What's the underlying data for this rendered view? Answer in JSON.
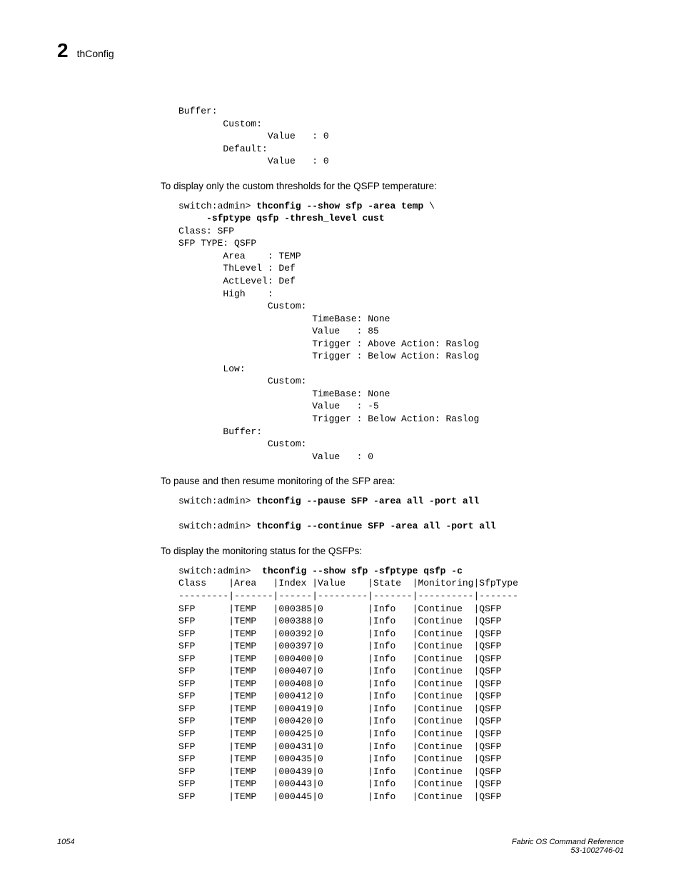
{
  "header": {
    "chapter_num": "2",
    "command_name": "thConfig"
  },
  "block1": {
    "l1": "Buffer:",
    "l2": "        Custom:",
    "l3": "                Value   : 0",
    "l4": "        Default:",
    "l5": "                Value   : 0"
  },
  "text1": "To display only the custom thresholds for the QSFP temperature:",
  "block2": {
    "l1": "switch:admin> ",
    "cmd1": "thconfig --show sfp -area temp",
    "bslash": " \\",
    "l2": "     ",
    "cmd2": "-sfptype qsfp -thresh_level cust",
    "l3": "Class: SFP",
    "l4": "SFP TYPE: QSFP",
    "l5": "        Area    : TEMP",
    "l6": "        ThLevel : Def",
    "l7": "        ActLevel: Def",
    "l8": "        High    :",
    "l9": "                Custom:",
    "l10": "                        TimeBase: None",
    "l11": "                        Value   : 85",
    "l12": "                        Trigger : Above Action: Raslog",
    "l13": "                        Trigger : Below Action: Raslog",
    "l14": "        Low:",
    "l15": "                Custom:",
    "l16": "                        TimeBase: None",
    "l17": "                        Value   : -5",
    "l18": "                        Trigger : Below Action: Raslog",
    "l19": "        Buffer:",
    "l20": "                Custom:",
    "l21": "                        Value   : 0"
  },
  "text2": "To pause and then resume monitoring of the SFP area:",
  "block3": {
    "l1a": "switch:admin> ",
    "cmd1": "thconfig --pause SFP -area all -port all",
    "blank": "",
    "l2a": "switch:admin> ",
    "cmd2": "thconfig --continue SFP -area all -port all"
  },
  "text3": "To display the monitoring status for the QSFPs:",
  "block4": {
    "l1a": "switch:admin>  ",
    "cmd1": "thconfig --show sfp -sfptype qsfp -c",
    "hdr": "Class    |Area   |Index |Value    |State  |Monitoring|SfpType",
    "sep": "---------|-------|------|---------|-------|----------|-------",
    "r1": "SFP      |TEMP   |000385|0        |Info   |Continue  |QSFP",
    "r2": "SFP      |TEMP   |000388|0        |Info   |Continue  |QSFP",
    "r3": "SFP      |TEMP   |000392|0        |Info   |Continue  |QSFP",
    "r4": "SFP      |TEMP   |000397|0        |Info   |Continue  |QSFP",
    "r5": "SFP      |TEMP   |000400|0        |Info   |Continue  |QSFP",
    "r6": "SFP      |TEMP   |000407|0        |Info   |Continue  |QSFP",
    "r7": "SFP      |TEMP   |000408|0        |Info   |Continue  |QSFP",
    "r8": "SFP      |TEMP   |000412|0        |Info   |Continue  |QSFP",
    "r9": "SFP      |TEMP   |000419|0        |Info   |Continue  |QSFP",
    "r10": "SFP      |TEMP   |000420|0        |Info   |Continue  |QSFP",
    "r11": "SFP      |TEMP   |000425|0        |Info   |Continue  |QSFP",
    "r12": "SFP      |TEMP   |000431|0        |Info   |Continue  |QSFP",
    "r13": "SFP      |TEMP   |000435|0        |Info   |Continue  |QSFP",
    "r14": "SFP      |TEMP   |000439|0        |Info   |Continue  |QSFP",
    "r15": "SFP      |TEMP   |000443|0        |Info   |Continue  |QSFP",
    "r16": "SFP      |TEMP   |000445|0        |Info   |Continue  |QSFP"
  },
  "footer": {
    "page_num": "1054",
    "doc_title": "Fabric OS Command Reference",
    "doc_id": "53-1002746-01"
  }
}
